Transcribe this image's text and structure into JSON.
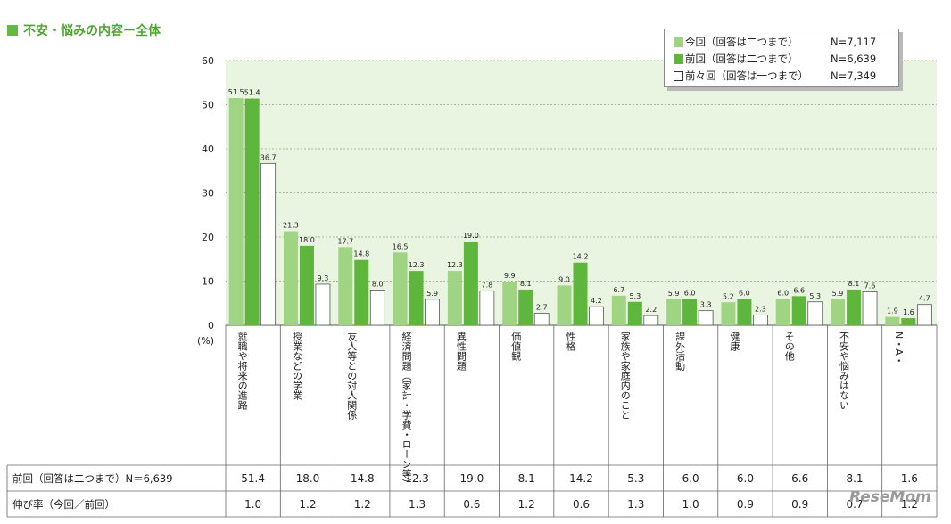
{
  "chart_data": {
    "type": "bar",
    "title": "不安・悩みの内容ー全体",
    "ylim": [
      0,
      60
    ],
    "yticks": [
      "0",
      "10",
      "20",
      "30",
      "40",
      "50",
      "60"
    ],
    "ylabel": "(%)",
    "categories": [
      "就職や将来の進路",
      "授業などの学業",
      "友人等との対人関係",
      "経済問題（家計・学費・ローン等）",
      "異性問題",
      "価値観",
      "性格",
      "家族や家庭内のこと",
      "課外活動",
      "健康",
      "その他",
      "不安や悩みはない",
      "N・A・"
    ],
    "series": [
      {
        "name": "今回（回答は二つまで）",
        "n": "N=7,117",
        "color": "#9fd483",
        "values": [
          51.5,
          21.3,
          17.7,
          16.5,
          12.3,
          9.9,
          9.0,
          6.7,
          5.9,
          5.2,
          6.0,
          5.9,
          1.9
        ]
      },
      {
        "name": "前回（回答は二つまで）",
        "n": "N=6,639",
        "color": "#5eb63d",
        "values": [
          51.4,
          18.0,
          14.8,
          12.3,
          19.0,
          8.1,
          14.2,
          5.3,
          6.0,
          6.0,
          6.6,
          8.1,
          1.6
        ]
      },
      {
        "name": "前々回（回答は一つまで）",
        "n": "N=7,349",
        "color": "#ffffff",
        "values": [
          36.7,
          9.3,
          8.0,
          5.9,
          7.8,
          2.7,
          4.2,
          2.2,
          3.3,
          2.3,
          5.3,
          7.6,
          4.7
        ]
      }
    ],
    "labels": {
      "s0": [
        "51.5",
        "21.3",
        "17.7",
        "16.5",
        "12.3",
        "9.9",
        "9.0",
        "6.7",
        "5.9",
        "5.2",
        "6.0",
        "5.9",
        "1.9"
      ],
      "s1": [
        "51.4",
        "18.0",
        "14.8",
        "12.3",
        "19.0",
        "8.1",
        "14.2",
        "5.3",
        "6.0",
        "6.0",
        "6.6",
        "8.1",
        "1.6"
      ],
      "s2": [
        "36.7",
        "9.3",
        "8.0",
        "5.9",
        "7.8",
        "2.7",
        "4.2",
        "2.2",
        "3.3",
        "2.3",
        "5.3",
        "7.6",
        "4.7"
      ]
    },
    "table": {
      "rows": [
        {
          "label": "前回（回答は二つまで）N＝6,639",
          "values": [
            "51.4",
            "18.0",
            "14.8",
            "12.3",
            "19.0",
            "8.1",
            "14.2",
            "5.3",
            "6.0",
            "6.0",
            "6.6",
            "8.1",
            "1.6"
          ]
        },
        {
          "label": "伸び率（今回／前回）",
          "values": [
            "1.0",
            "1.2",
            "1.2",
            "1.3",
            "0.6",
            "1.2",
            "0.6",
            "1.3",
            "1.0",
            "0.9",
            "0.9",
            "0.7",
            "1.2"
          ]
        }
      ]
    }
  },
  "watermark": "ReseMom"
}
